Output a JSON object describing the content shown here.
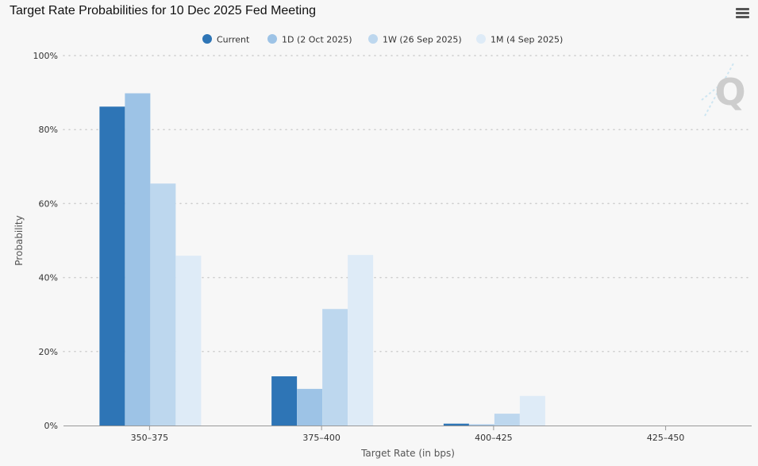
{
  "chart_data": {
    "type": "bar",
    "title": "Target Rate Probabilities for 10 Dec 2025 Fed Meeting",
    "xlabel": "Target Rate (in bps)",
    "ylabel": "Probability",
    "ylim": [
      0,
      100
    ],
    "yticks": [
      0,
      20,
      40,
      60,
      80,
      100
    ],
    "ytick_labels": [
      "0%",
      "20%",
      "40%",
      "60%",
      "80%",
      "100%"
    ],
    "grid": true,
    "legend_position": "top-center",
    "categories": [
      "350-375",
      "375-400",
      "400-425",
      "425-450"
    ],
    "category_labels": [
      "350–375",
      "375–400",
      "400–425",
      "425–450"
    ],
    "series": [
      {
        "name": "Current",
        "color": "#2e75b6",
        "values": [
          86.2,
          13.3,
          0.5,
          0.0
        ]
      },
      {
        "name": "1D (2 Oct 2025)",
        "color": "#9dc3e6",
        "values": [
          89.8,
          9.9,
          0.3,
          0.0
        ]
      },
      {
        "name": "1W (26 Sep 2025)",
        "color": "#bdd7ee",
        "values": [
          65.4,
          31.5,
          3.2,
          0.0
        ]
      },
      {
        "name": "1M (4 Sep 2025)",
        "color": "#deebf7",
        "values": [
          45.9,
          46.1,
          8.0,
          0.0
        ]
      }
    ]
  },
  "menu_icon": "hamburger-menu-icon",
  "watermark_icon": "q-logo-icon",
  "colors": {
    "background": "#f7f7f7",
    "axis": "#999999",
    "grid": "#cccccc",
    "text": "#333333"
  }
}
